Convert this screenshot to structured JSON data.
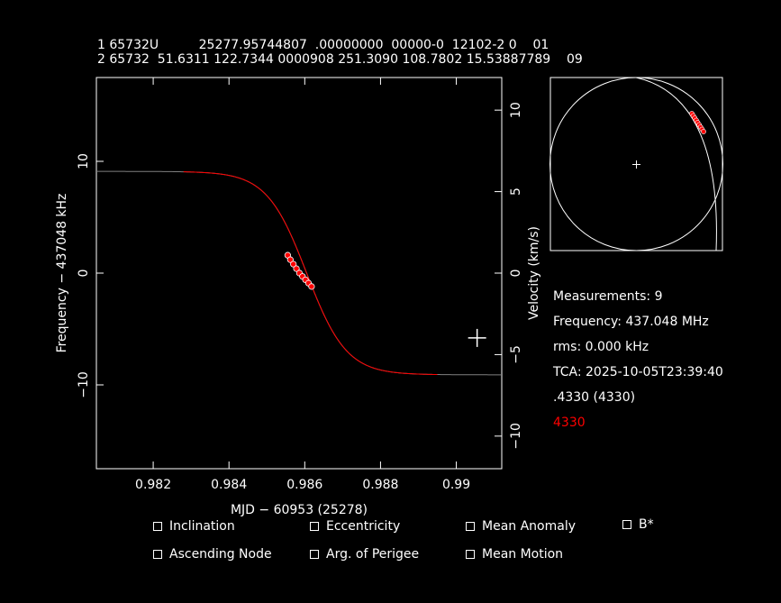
{
  "tle": {
    "line1": "1 65732U          25277.95744807  .00000000  00000-0  12102-2 0    01",
    "line2": "2 65732  51.6311 122.7344 0000908 251.3090 108.7802 15.53887789    09"
  },
  "info": {
    "measurements": "Measurements: 9",
    "frequency": "Frequency: 437.048 MHz",
    "rms": "rms: 0.000 kHz",
    "tca": "TCA: 2025-10-05T23:39:40",
    "site": ".4330 (4330)",
    "site_red": "4330"
  },
  "colors": {
    "curve_fit": "#ff0000",
    "curve_model": "#808080",
    "points": "#ff0000",
    "site_red": "#ff0000"
  },
  "options": [
    {
      "label": "Inclination",
      "checked": false
    },
    {
      "label": "Eccentricity",
      "checked": false
    },
    {
      "label": "Mean Anomaly",
      "checked": false
    },
    {
      "label": "B*",
      "checked": false
    },
    {
      "label": "Ascending Node",
      "checked": false
    },
    {
      "label": "Arg. of Perigee",
      "checked": false
    },
    {
      "label": "Mean Motion",
      "checked": false
    }
  ],
  "chart_data": {
    "type": "scatter",
    "xlabel": "MJD − 60953 (25278)",
    "ylabel": "Frequency − 437048 kHz",
    "y2label": "Velocity (km/s)",
    "xlim": [
      0.9805,
      0.9912
    ],
    "ylim": [
      -17.5,
      17.5
    ],
    "y2lim": [
      -12.0,
      12.0
    ],
    "xticks": [
      0.982,
      0.984,
      0.986,
      0.988,
      0.99
    ],
    "xtick_labels": [
      "0.982",
      "0.984",
      "0.986",
      "0.988",
      "0.99"
    ],
    "yticks": [
      10,
      0,
      -10
    ],
    "ytick_labels": [
      "10",
      "0",
      "−10"
    ],
    "y2ticks": [
      10,
      5,
      0,
      -5,
      -10
    ],
    "y2tick_labels": [
      "10",
      "5",
      "0",
      "−5",
      "−10"
    ],
    "curve": {
      "amplitude": 9.1,
      "center": 0.98605,
      "scale": 0.00105
    },
    "fit_range": [
      0.9828,
      0.9895
    ],
    "points": {
      "x": [
        0.98555,
        0.98562,
        0.9857,
        0.98578,
        0.98586,
        0.98594,
        0.98602,
        0.9861,
        0.98618
      ],
      "y": [
        1.6,
        1.2,
        0.8,
        0.4,
        0.0,
        -0.3,
        -0.6,
        -0.9,
        -1.2
      ]
    },
    "marker": {
      "x": 0.99055,
      "y": -5.8
    }
  }
}
